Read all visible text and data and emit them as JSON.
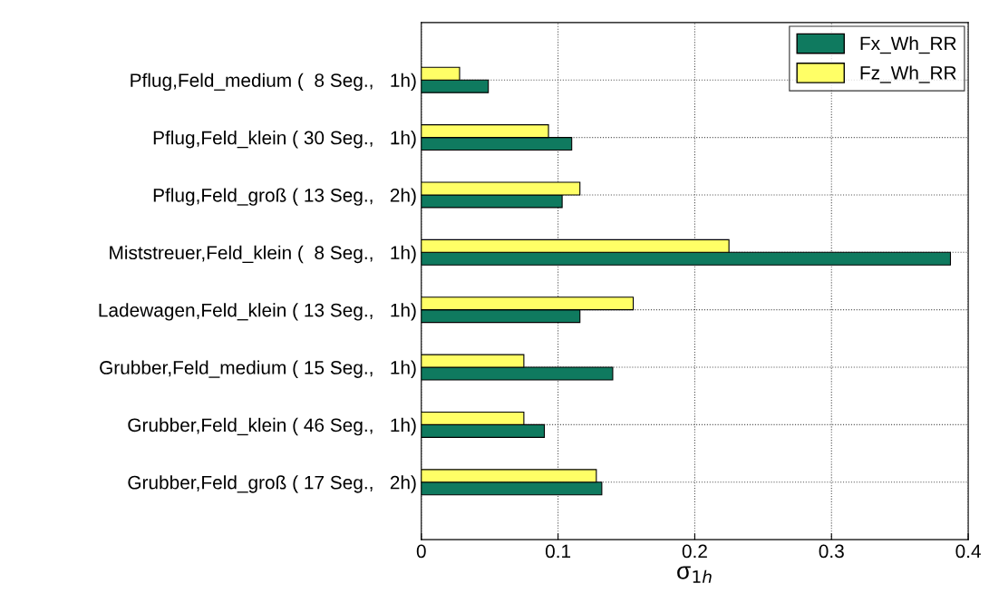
{
  "chart_data": {
    "type": "bar",
    "orientation": "horizontal",
    "xlabel": "σ$_{1h}$",
    "categories": [
      "Pflug,Feld_medium (  8 Seg.,   1h)",
      "Pflug,Feld_klein ( 30 Seg.,   1h)",
      "Pflug,Feld_groß ( 13 Seg.,   2h)",
      "Miststreuer,Feld_klein (  8 Seg.,   1h)",
      "Ladewagen,Feld_klein ( 13 Seg.,   1h)",
      "Grubber,Feld_medium ( 15 Seg.,   1h)",
      "Grubber,Feld_klein ( 46 Seg.,   1h)",
      "Grubber,Feld_groß ( 17 Seg.,   2h)"
    ],
    "series": [
      {
        "name": "Fx_Wh_RR",
        "color": "#0f7a5f",
        "values": [
          0.049,
          0.11,
          0.103,
          0.387,
          0.116,
          0.14,
          0.09,
          0.132
        ]
      },
      {
        "name": "Fz_Wh_RR",
        "color": "#ffff66",
        "values": [
          0.028,
          0.093,
          0.116,
          0.225,
          0.155,
          0.075,
          0.075,
          0.128
        ]
      }
    ],
    "xlim": [
      0,
      0.4
    ],
    "xticks": [
      0,
      0.1,
      0.2,
      0.3,
      0.4
    ],
    "grid": true,
    "legend": "top right"
  }
}
